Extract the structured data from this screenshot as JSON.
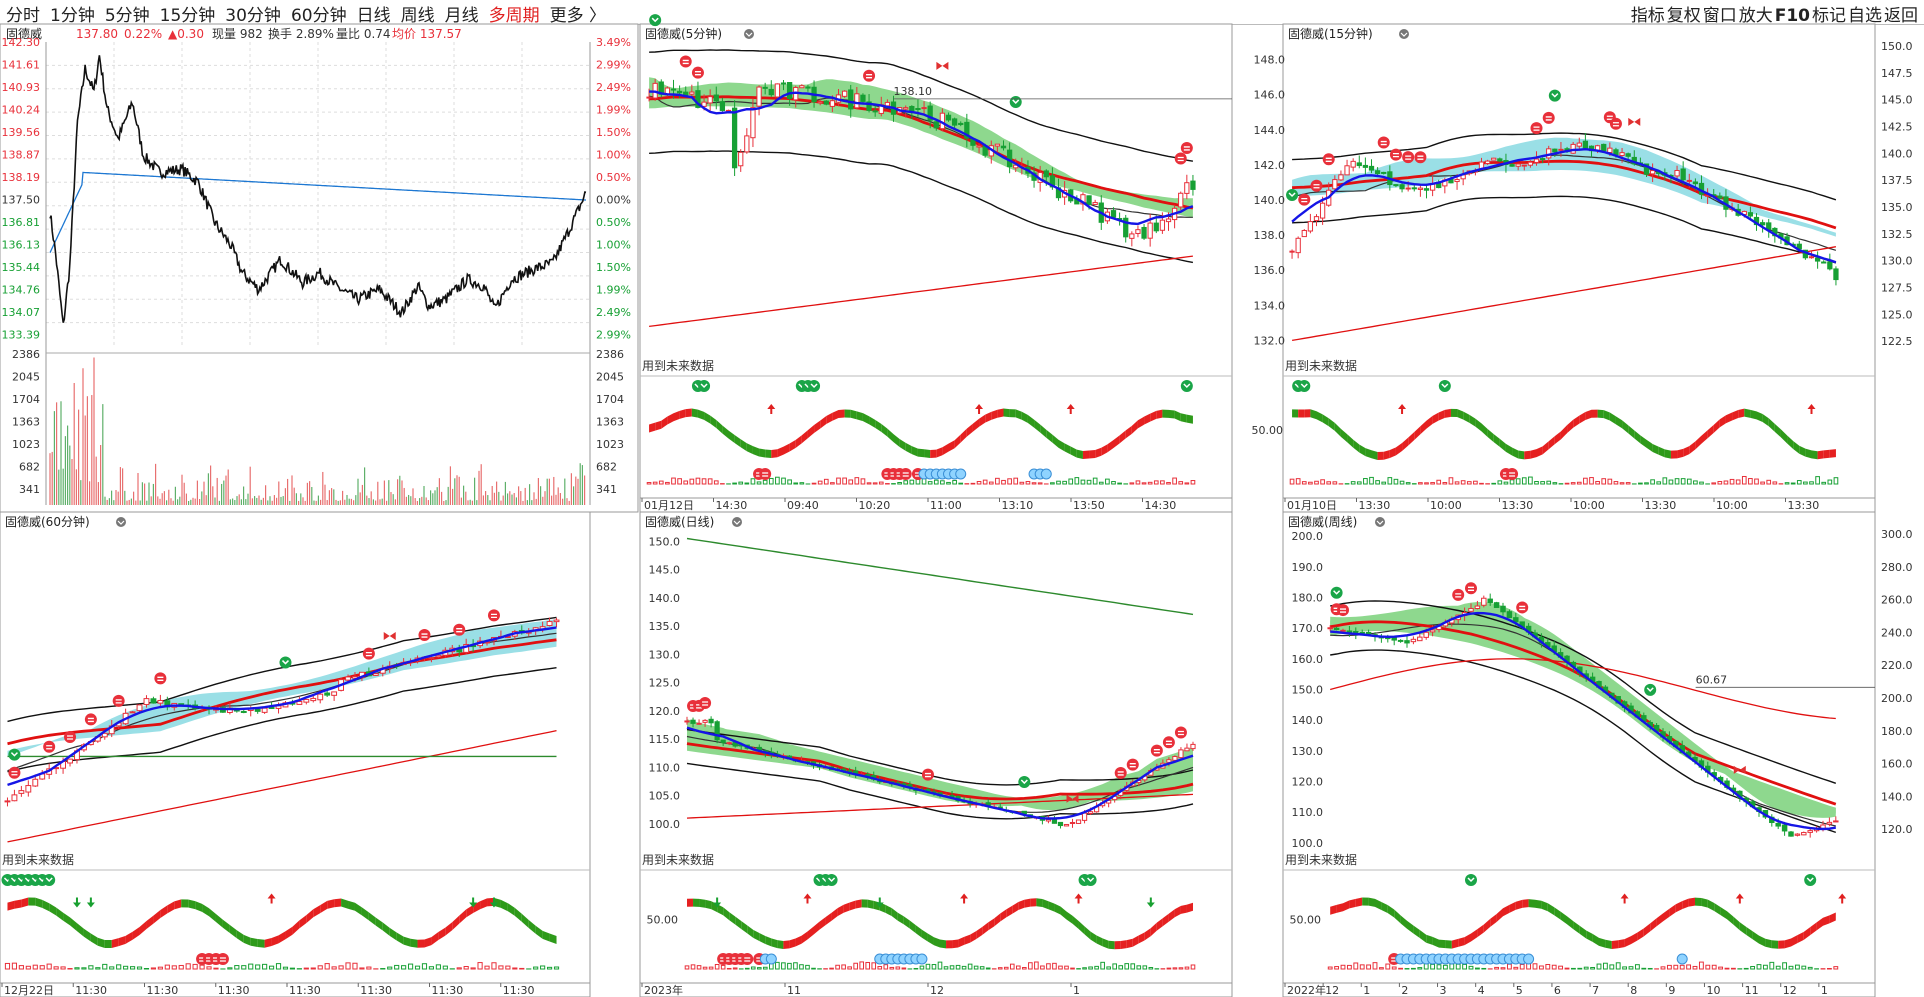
{
  "toolbar": {
    "periods": [
      "分时",
      "1分钟",
      "5分钟",
      "15分钟",
      "30分钟",
      "60分钟",
      "日线",
      "周线",
      "月线",
      "多周期",
      "更多 〉"
    ],
    "right": [
      "指标",
      "复权",
      "窗口",
      "放大",
      "F10",
      "标记",
      "自选",
      "返回"
    ]
  },
  "colors": {
    "up": "#e8303a",
    "down": "#17a034",
    "avg": "#1e78d2",
    "price": "#111111",
    "ma_blue": "#1515e6",
    "ma_red": "#e01010",
    "cloud_cyan": "#9adfe6",
    "cloud_green": "#8ed88e"
  },
  "stock": "固德威",
  "intraday": {
    "title": "固德威",
    "last": "137.80",
    "pct": "0.22%",
    "chg": "▲0.30",
    "volume_label": "现量 982",
    "turnover_label": "换手 2.89%",
    "ratio_label": "量比 0.74",
    "avg_label": "均价 137.57",
    "price_ticks": [
      "142.30",
      "141.61",
      "140.93",
      "140.24",
      "139.56",
      "138.87",
      "138.19",
      "137.50",
      "136.81",
      "136.13",
      "135.44",
      "134.76",
      "134.07",
      "133.39"
    ],
    "pct_ticks": [
      "3.49%",
      "2.99%",
      "2.49%",
      "1.99%",
      "1.50%",
      "1.00%",
      "0.50%",
      "0.00%",
      "0.50%",
      "1.00%",
      "1.50%",
      "1.99%",
      "2.49%",
      "2.99%"
    ],
    "vol_ticks": [
      "2386",
      "2045",
      "1704",
      "1363",
      "1023",
      "682",
      "341"
    ]
  },
  "panels": [
    {
      "id": "p5",
      "title": "固德威(5分钟)",
      "right_ticks": [],
      "left_ticks": [],
      "macd_tick": "",
      "dates": [
        "01月12日",
        "14:30",
        "09:40",
        "10:20",
        "11:00",
        "13:10",
        "13:50",
        "14:30"
      ],
      "note": "用到未来数据",
      "marker": "138.10"
    },
    {
      "id": "p15",
      "title": "固德威(15分钟)",
      "right_ticks": [
        "150.0",
        "147.5",
        "145.0",
        "142.5",
        "140.0",
        "137.5",
        "135.0",
        "132.5",
        "130.0",
        "127.5",
        "125.0",
        "122.5"
      ],
      "left_ticks": [
        "148.0",
        "146.0",
        "144.0",
        "142.0",
        "140.0",
        "138.0",
        "136.0",
        "134.0",
        "132.0"
      ],
      "macd_tick": "50.00",
      "dates": [
        "01月10日",
        "13:30",
        "10:00",
        "13:30",
        "10:00",
        "13:30",
        "10:00",
        "13:30"
      ],
      "note": "用到未来数据",
      "marker": ""
    },
    {
      "id": "p60",
      "title": "固德威(60分钟)",
      "right_ticks": [],
      "left_ticks": [],
      "macd_tick": "",
      "dates": [
        "12月22日",
        "11:30",
        "11:30",
        "11:30",
        "11:30",
        "11:30",
        "11:30",
        "11:30"
      ],
      "note": "用到未来数据",
      "marker": ""
    },
    {
      "id": "pday",
      "title": "固德威(日线)",
      "right_ticks": [],
      "left_ticks": [
        "150.0",
        "145.0",
        "140.0",
        "135.0",
        "130.0",
        "125.0",
        "120.0",
        "115.0",
        "110.0",
        "105.0",
        "100.0"
      ],
      "macd_tick": "50.00",
      "dates": [
        "2023年",
        "11",
        "12",
        "1"
      ],
      "note": "用到未来数据",
      "marker": ""
    },
    {
      "id": "pweek",
      "title": "固德威(周线)",
      "right_ticks": [
        "300.0",
        "280.0",
        "260.0",
        "240.0",
        "220.0",
        "200.0",
        "180.0",
        "160.0",
        "140.0",
        "120.0"
      ],
      "left_ticks": [
        "200.0",
        "190.0",
        "180.0",
        "170.0",
        "160.0",
        "150.0",
        "140.0",
        "130.0",
        "120.0",
        "110.0",
        "100.0"
      ],
      "macd_tick": "50.00",
      "dates": [
        "2022年",
        "12",
        "1",
        "2",
        "3",
        "4",
        "5",
        "6",
        "7",
        "8",
        "9",
        "10",
        "11",
        "12",
        "1"
      ],
      "note": "用到未来数据",
      "marker": "60.67"
    }
  ]
}
